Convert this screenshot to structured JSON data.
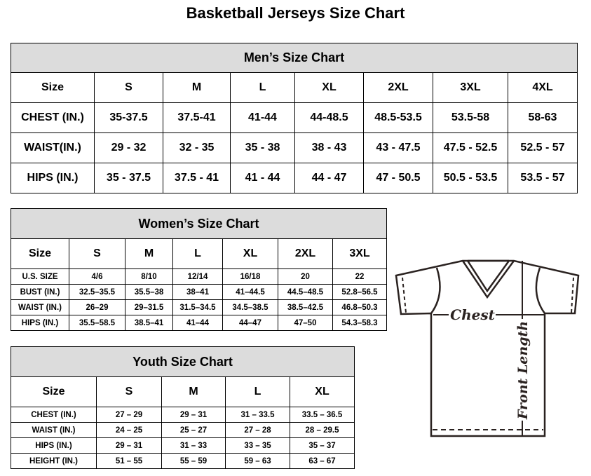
{
  "title": "Basketball Jerseys Size Chart",
  "men": {
    "caption": "Men’s Size Chart",
    "headers": [
      "Size",
      "S",
      "M",
      "L",
      "XL",
      "2XL",
      "3XL",
      "4XL"
    ],
    "rows": [
      [
        "CHEST (IN.)",
        "35-37.5",
        "37.5-41",
        "41-44",
        "44-48.5",
        "48.5-53.5",
        "53.5-58",
        "58-63"
      ],
      [
        "WAIST(IN.)",
        "29 - 32",
        "32 - 35",
        "35 - 38",
        "38 - 43",
        "43 - 47.5",
        "47.5 - 52.5",
        "52.5 - 57"
      ],
      [
        "HIPS (IN.)",
        "35 - 37.5",
        "37.5 - 41",
        "41 - 44",
        "44 - 47",
        "47 - 50.5",
        "50.5 - 53.5",
        "53.5 - 57"
      ]
    ]
  },
  "women": {
    "caption": "Women’s Size Chart",
    "headers": [
      "Size",
      "S",
      "M",
      "L",
      "XL",
      "2XL",
      "3XL"
    ],
    "rows": [
      [
        "U.S. SIZE",
        "4/6",
        "8/10",
        "12/14",
        "16/18",
        "20",
        "22"
      ],
      [
        "BUST (IN.)",
        "32.5–35.5",
        "35.5–38",
        "38–41",
        "41–44.5",
        "44.5–48.5",
        "52.8–56.5"
      ],
      [
        "WAIST (IN.)",
        "26–29",
        "29–31.5",
        "31.5–34.5",
        "34.5–38.5",
        "38.5–42.5",
        "46.8–50.3"
      ],
      [
        "HIPS (IN.)",
        "35.5–58.5",
        "38.5–41",
        "41–44",
        "44–47",
        "47–50",
        "54.3–58.3"
      ]
    ]
  },
  "youth": {
    "caption": "Youth Size Chart",
    "headers": [
      "Size",
      "S",
      "M",
      "L",
      "XL"
    ],
    "rows": [
      [
        "CHEST (IN.)",
        "27 – 29",
        "29 – 31",
        "31 – 33.5",
        "33.5 – 36.5"
      ],
      [
        "WAIST (IN.)",
        "24 – 25",
        "25 – 27",
        "27 – 28",
        "28 – 29.5"
      ],
      [
        "HIPS (IN.)",
        "29 – 31",
        "31 – 33",
        "33 – 35",
        "35 – 37"
      ],
      [
        "HEIGHT (IN.)",
        "51 – 55",
        "55 – 59",
        "59 – 63",
        "63 – 67"
      ]
    ]
  },
  "diagram": {
    "chest_label": "Chest",
    "length_label": "Front Length",
    "line_color": "#2a2220"
  }
}
